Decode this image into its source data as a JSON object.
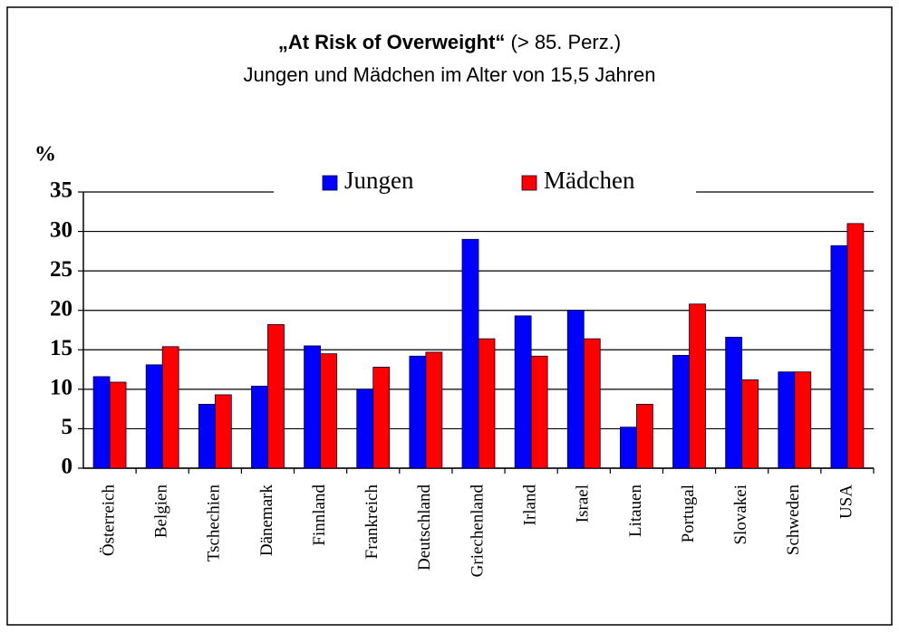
{
  "chart_data": {
    "type": "bar",
    "title": "„At Risk of Overweight“",
    "title_suffix": "(> 85. Perz.)",
    "subtitle": "Jungen und Mädchen im Alter von 15,5 Jahren",
    "ylabel": "%",
    "categories": [
      "Österreich",
      "Belgien",
      "Tschechien",
      "Dänemark",
      "Finnland",
      "Frankreich",
      "Deutschland",
      "Griechenland",
      "Irland",
      "Israel",
      "Litauen",
      "Portugal",
      "Slovakei",
      "Schweden",
      "USA"
    ],
    "series": [
      {
        "name": "Jungen",
        "color": "#0000ff",
        "values": [
          11.6,
          13.1,
          8.1,
          10.4,
          15.5,
          10.0,
          14.2,
          29.0,
          19.3,
          20.0,
          5.2,
          14.3,
          16.6,
          12.2,
          28.2
        ]
      },
      {
        "name": "Mädchen",
        "color": "#ff0000",
        "values": [
          10.9,
          15.4,
          9.3,
          18.2,
          14.5,
          12.8,
          14.7,
          16.4,
          14.2,
          16.4,
          8.1,
          20.8,
          11.2,
          12.2,
          31.0
        ]
      }
    ],
    "ylim": [
      0,
      35
    ],
    "yticks": [
      0,
      5,
      10,
      15,
      20,
      25,
      30,
      35
    ],
    "grid": true,
    "legend": "top"
  }
}
